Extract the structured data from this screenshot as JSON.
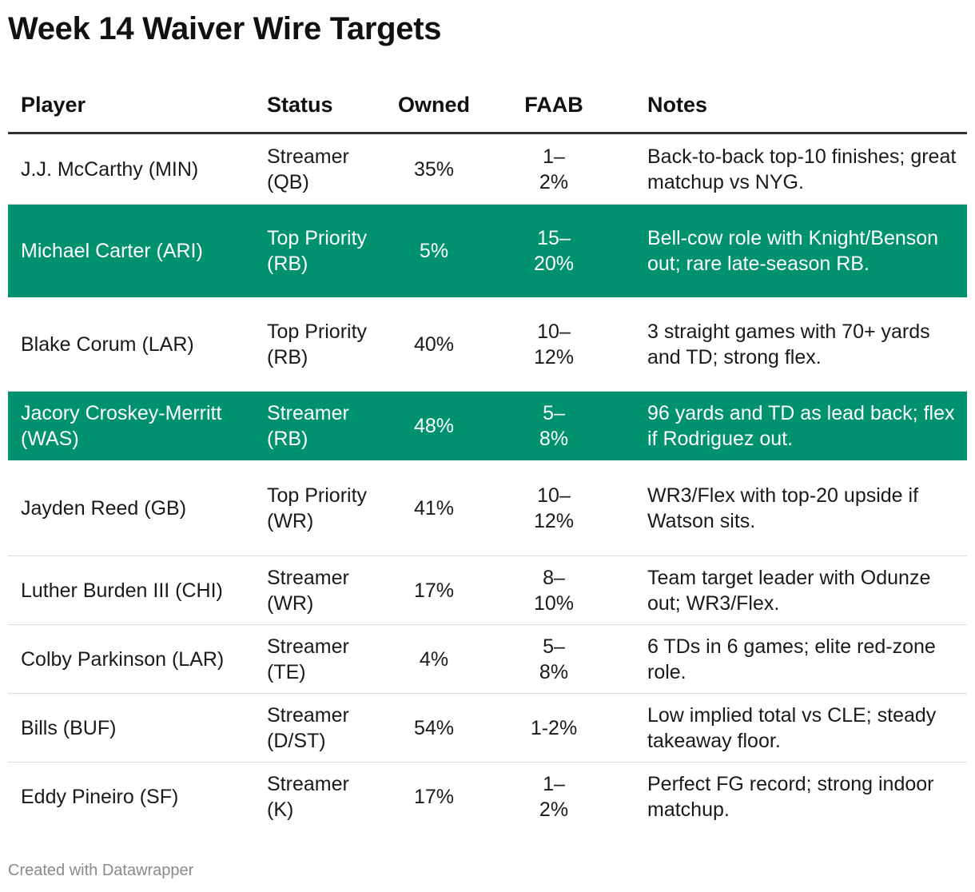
{
  "title": "Week 14 Waiver Wire Targets",
  "columns": {
    "player": "Player",
    "status": "Status",
    "owned": "Owned",
    "faab": "FAAB",
    "notes": "Notes"
  },
  "rows": [
    {
      "player": "J.J. McCarthy (MIN)",
      "status": "Streamer (QB)",
      "owned": "35%",
      "faab": "1–2%",
      "notes": "Back-to-back top-10 finishes; great matchup vs NYG.",
      "highlighted": false
    },
    {
      "player": "Michael Carter (ARI)",
      "status": "Top Priority (RB)",
      "owned": "5%",
      "faab": "15–20%",
      "notes": "Bell-cow role with Knight/Benson out; rare late-season RB.",
      "highlighted": true
    },
    {
      "player": "Blake Corum (LAR)",
      "status": "Top Priority (RB)",
      "owned": "40%",
      "faab": "10–12%",
      "notes": "3 straight games with 70+ yards and TD; strong flex.",
      "highlighted": false
    },
    {
      "player": "Jacory Croskey-Merritt (WAS)",
      "status": "Streamer (RB)",
      "owned": "48%",
      "faab": "5–8%",
      "notes": "96 yards and TD as lead back; flex if Rodriguez out.",
      "highlighted": true
    },
    {
      "player": "Jayden Reed (GB)",
      "status": "Top Priority (WR)",
      "owned": "41%",
      "faab": "10–12%",
      "notes": "WR3/Flex with top-20 upside if Watson sits.",
      "highlighted": false
    },
    {
      "player": "Luther Burden III (CHI)",
      "status": "Streamer (WR)",
      "owned": "17%",
      "faab": "8–10%",
      "notes": "Team target leader with Odunze out; WR3/Flex.",
      "highlighted": false
    },
    {
      "player": "Colby Parkinson (LAR)",
      "status": "Streamer (TE)",
      "owned": "4%",
      "faab": "5–8%",
      "notes": "6 TDs in 6 games; elite red-zone role.",
      "highlighted": false
    },
    {
      "player": "Bills (BUF)",
      "status": "Streamer (D/ST)",
      "owned": "54%",
      "faab": "1-2%",
      "notes": "Low implied total vs CLE; steady takeaway floor.",
      "highlighted": false
    },
    {
      "player": "Eddy Pineiro (SF)",
      "status": "Streamer (K)",
      "owned": "17%",
      "faab": "1–2%",
      "notes": "Perfect FG record; strong indoor matchup.",
      "highlighted": false
    }
  ],
  "footer": "Created with Datawrapper",
  "colors": {
    "highlight": "#00916e",
    "text": "#1a1a1a",
    "footer": "#8a8a8a"
  }
}
